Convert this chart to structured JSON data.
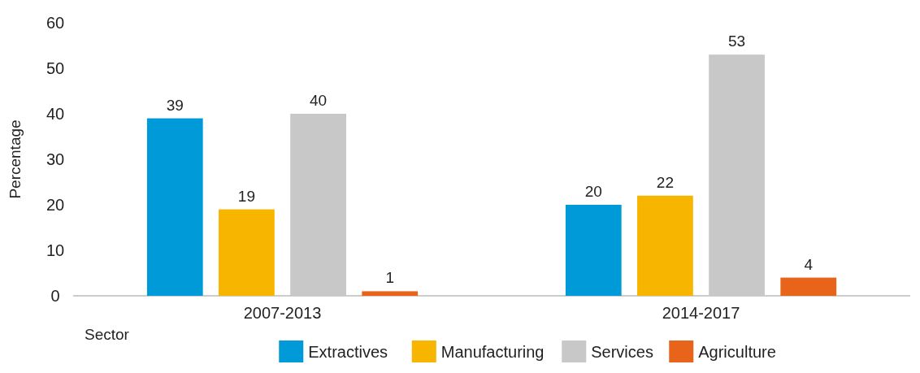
{
  "chart_data": {
    "type": "bar",
    "ylabel": "Percentage",
    "xlabel": "Sector",
    "categories": [
      "2007-2013",
      "2014-2017"
    ],
    "series": [
      {
        "name": "Extractives",
        "color": "#009ad8",
        "values": [
          39,
          20
        ]
      },
      {
        "name": "Manufacturing",
        "color": "#f8b500",
        "values": [
          19,
          22
        ]
      },
      {
        "name": "Services",
        "color": "#c8c8c8",
        "values": [
          40,
          53
        ]
      },
      {
        "name": "Agriculture",
        "color": "#e8641b",
        "values": [
          1,
          4
        ]
      }
    ],
    "ylim": [
      0,
      60
    ],
    "yticks": [
      0,
      10,
      20,
      30,
      40,
      50,
      60
    ],
    "data_labels": true,
    "legend": "bottom",
    "grid": false
  }
}
